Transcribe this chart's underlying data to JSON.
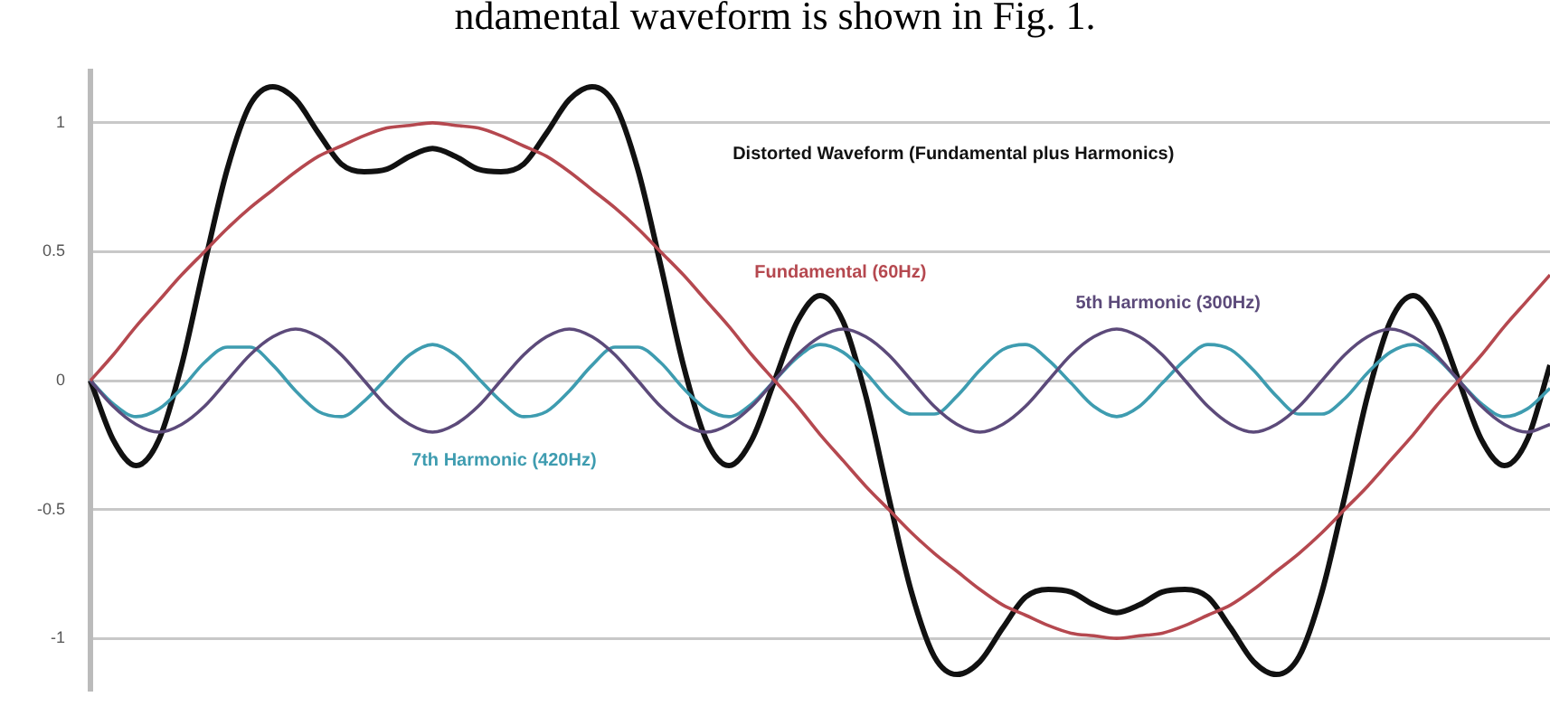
{
  "chart_data": {
    "type": "line",
    "annotations": [
      "ndamental waveform is shown in Fig. 1."
    ],
    "categories": [
      null,
      null,
      null,
      null,
      null,
      null,
      null,
      null,
      null,
      null,
      null,
      null,
      null,
      null,
      null,
      null,
      null,
      null,
      null,
      null,
      null,
      null,
      null,
      null,
      null,
      null,
      null,
      null,
      null,
      null,
      null,
      null,
      null,
      null,
      null,
      null,
      null,
      null,
      null,
      null,
      null,
      null,
      null,
      null,
      null,
      null,
      null,
      null,
      null,
      null,
      null,
      null,
      null,
      null,
      null,
      null,
      null,
      null,
      null,
      null,
      null,
      null,
      null,
      null,
      null
    ],
    "series": [
      {
        "name": "Fundamental (60Hz)",
        "color": "#b5484f",
        "values": [
          0,
          0.1,
          0.21,
          0.31,
          0.41,
          0.5,
          0.59,
          0.67,
          0.74,
          0.81,
          0.87,
          0.91,
          0.95,
          0.98,
          0.99,
          1,
          0.99,
          0.98,
          0.95,
          0.91,
          0.87,
          0.81,
          0.74,
          0.67,
          0.59,
          0.5,
          0.41,
          0.31,
          0.21,
          0.1,
          0,
          -0.1,
          -0.21,
          -0.31,
          -0.41,
          -0.5,
          -0.59,
          -0.67,
          -0.74,
          -0.81,
          -0.87,
          -0.91,
          -0.95,
          -0.98,
          -0.99,
          -1,
          -0.99,
          -0.98,
          -0.95,
          -0.91,
          -0.87,
          -0.81,
          -0.74,
          -0.67,
          -0.59,
          -0.5,
          -0.41,
          -0.31,
          -0.21,
          -0.1,
          0,
          0.1,
          0.21,
          0.31,
          0.41
        ]
      },
      {
        "name": "5th Harmonic (300Hz)",
        "color": "#5c4a7a",
        "values": [
          0,
          -0.1,
          -0.17,
          -0.2,
          -0.17,
          -0.1,
          0,
          0.1,
          0.17,
          0.2,
          0.17,
          0.1,
          0,
          -0.1,
          -0.17,
          -0.2,
          -0.17,
          -0.1,
          0,
          0.1,
          0.17,
          0.2,
          0.17,
          0.1,
          0,
          -0.1,
          -0.17,
          -0.2,
          -0.17,
          -0.1,
          0,
          0.1,
          0.17,
          0.2,
          0.17,
          0.1,
          0,
          -0.1,
          -0.17,
          -0.2,
          -0.17,
          -0.1,
          0,
          0.1,
          0.17,
          0.2,
          0.17,
          0.1,
          0,
          -0.1,
          -0.17,
          -0.2,
          -0.17,
          -0.1,
          0,
          0.1,
          0.17,
          0.2,
          0.17,
          0.1,
          0,
          -0.1,
          -0.17,
          -0.2,
          -0.17
        ]
      },
      {
        "name": "7th Harmonic (420Hz)",
        "color": "#3e9cb0",
        "values": [
          0,
          -0.09,
          -0.14,
          -0.11,
          -0.03,
          0.07,
          0.13,
          0.13,
          0.06,
          -0.04,
          -0.12,
          -0.14,
          -0.08,
          0.01,
          0.1,
          0.14,
          0.1,
          0.01,
          -0.08,
          -0.14,
          -0.12,
          -0.04,
          0.06,
          0.13,
          0.13,
          0.07,
          -0.03,
          -0.11,
          -0.14,
          -0.09,
          0,
          0.09,
          0.14,
          0.11,
          0.03,
          -0.07,
          -0.13,
          -0.13,
          -0.06,
          0.04,
          0.12,
          0.14,
          0.08,
          -0.01,
          -0.1,
          -0.14,
          -0.1,
          -0.01,
          0.08,
          0.14,
          0.12,
          0.04,
          -0.06,
          -0.13,
          -0.13,
          -0.07,
          0.03,
          0.11,
          0.14,
          0.09,
          0,
          -0.09,
          -0.14,
          -0.11,
          -0.03
        ]
      },
      {
        "name": "Distorted Waveform (Fundamental plus Harmonics)",
        "color": "#111111",
        "values": [
          0,
          -0.23,
          -0.33,
          -0.23,
          0.06,
          0.45,
          0.82,
          1.07,
          1.14,
          1.09,
          0.96,
          0.84,
          0.81,
          0.82,
          0.87,
          0.9,
          0.87,
          0.82,
          0.81,
          0.84,
          0.96,
          1.09,
          1.14,
          1.07,
          0.82,
          0.45,
          0.06,
          -0.23,
          -0.33,
          -0.23,
          0,
          0.23,
          0.33,
          0.23,
          -0.06,
          -0.45,
          -0.82,
          -1.07,
          -1.14,
          -1.09,
          -0.96,
          -0.84,
          -0.81,
          -0.82,
          -0.87,
          -0.9,
          -0.87,
          -0.82,
          -0.81,
          -0.84,
          -0.96,
          -1.09,
          -1.14,
          -1.07,
          -0.82,
          -0.45,
          -0.06,
          0.23,
          0.33,
          0.23,
          0,
          -0.23,
          -0.33,
          -0.23,
          0.06
        ]
      }
    ],
    "ylim": [
      -1.2,
      1.2
    ],
    "yticks": [
      -1,
      -0.5,
      0,
      0.5,
      1
    ],
    "grid": "y",
    "tick_labels": "y",
    "legend": false,
    "marker": "none",
    "line_style": "solid"
  }
}
